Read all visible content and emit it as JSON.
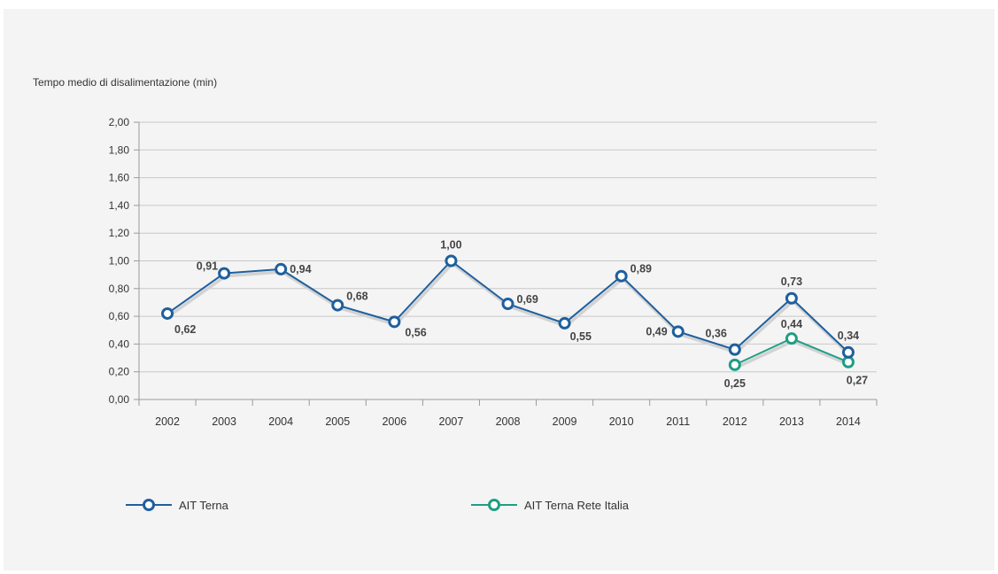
{
  "chart_data": {
    "type": "line",
    "ylabel": "Tempo medio di disalimentazione (min)",
    "ylim": [
      0,
      2
    ],
    "yticks": [
      "0,00",
      "0,20",
      "0,40",
      "0,60",
      "0,80",
      "1,00",
      "1,20",
      "1,40",
      "1,60",
      "1,80",
      "2,00"
    ],
    "categories": [
      "2002",
      "2003",
      "2004",
      "2005",
      "2006",
      "2007",
      "2008",
      "2009",
      "2010",
      "2011",
      "2012",
      "2013",
      "2014"
    ],
    "series": [
      {
        "name": "AIT Terna",
        "color": "#1e5f9e",
        "values": [
          0.62,
          0.91,
          0.94,
          0.68,
          0.56,
          1.0,
          0.69,
          0.55,
          0.89,
          0.49,
          0.36,
          0.73,
          0.34
        ],
        "labels": [
          "0,62",
          "0,91",
          "0,94",
          "0,68",
          "0,56",
          "1,00",
          "0,69",
          "0,55",
          "0,89",
          "0,49",
          "0,36",
          "0,73",
          "0,34"
        ]
      },
      {
        "name": "AIT Terna Rete Italia",
        "color": "#1f9e84",
        "values": [
          null,
          null,
          null,
          null,
          null,
          null,
          null,
          null,
          null,
          null,
          0.25,
          0.44,
          0.27
        ],
        "labels": [
          null,
          null,
          null,
          null,
          null,
          null,
          null,
          null,
          null,
          null,
          "0,25",
          "0,44",
          "0,27"
        ]
      }
    ],
    "grid": true,
    "legend": "bottom"
  }
}
